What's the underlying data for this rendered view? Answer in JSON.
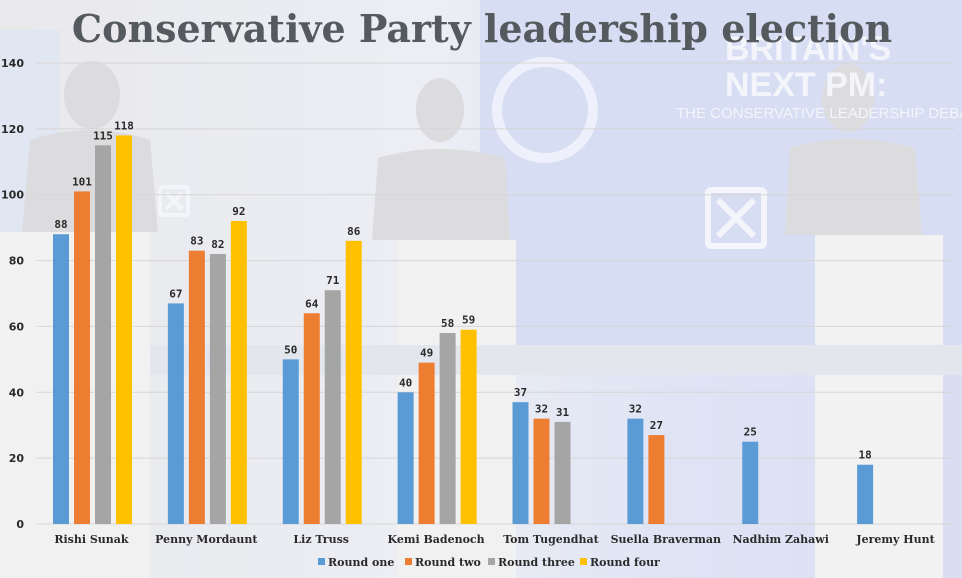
{
  "chart_data": {
    "type": "bar",
    "title": "Conservative Party leadership election",
    "xlabel": "",
    "ylabel": "",
    "ylim": [
      0,
      140
    ],
    "yticks": [
      0,
      20,
      40,
      60,
      80,
      100,
      120,
      140
    ],
    "grid": true,
    "legend_position": "bottom",
    "categories": [
      "Rishi Sunak",
      "Penny Mordaunt",
      "Liz Truss",
      "Kemi Badenoch",
      "Tom Tugendhat",
      "Suella Braverman",
      "Nadhim Zahawi",
      "Jeremy Hunt"
    ],
    "series": [
      {
        "name": "Round one",
        "color": "#5b9bd5",
        "values": [
          88,
          67,
          50,
          40,
          37,
          32,
          25,
          18
        ]
      },
      {
        "name": "Round two",
        "color": "#ed7d31",
        "values": [
          101,
          83,
          64,
          49,
          32,
          27,
          null,
          null
        ]
      },
      {
        "name": "Round three",
        "color": "#a5a5a5",
        "values": [
          115,
          82,
          71,
          58,
          31,
          null,
          null,
          null
        ]
      },
      {
        "name": "Round four",
        "color": "#ffc000",
        "values": [
          118,
          92,
          86,
          59,
          null,
          null,
          null,
          null
        ]
      }
    ]
  },
  "background": {
    "description_icon": "tv-debate-stage-photo",
    "banner_text_line1": "BRITAIN'S",
    "banner_text_line2": "NEXT PM:",
    "banner_text_line3": "THE CONSERVATIVE LEADERSHIP DEBATE"
  }
}
